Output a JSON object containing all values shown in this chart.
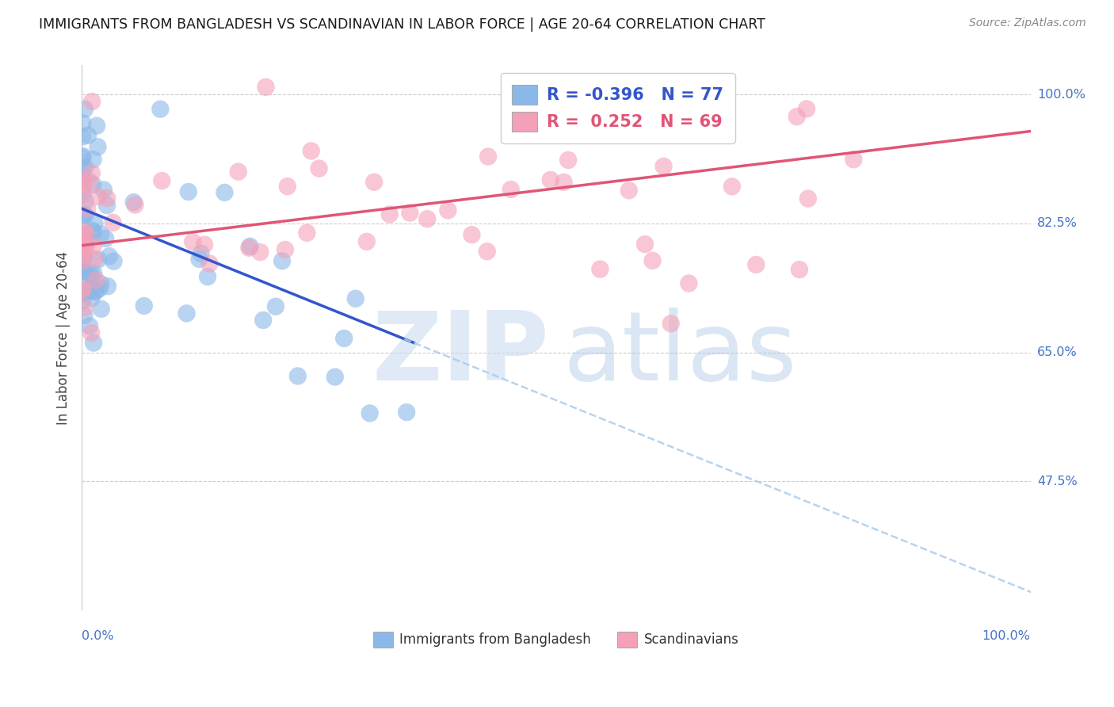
{
  "title": "IMMIGRANTS FROM BANGLADESH VS SCANDINAVIAN IN LABOR FORCE | AGE 20-64 CORRELATION CHART",
  "source": "Source: ZipAtlas.com",
  "ylabel": "In Labor Force | Age 20-64",
  "xlim": [
    0.0,
    1.0
  ],
  "ylim": [
    0.3,
    1.04
  ],
  "r_bangladesh": -0.396,
  "n_bangladesh": 77,
  "r_scandinavian": 0.252,
  "n_scandinavian": 69,
  "color_bangladesh": "#8BB8E8",
  "color_scandinavian": "#F4A0B8",
  "color_bangladesh_line": "#3355CC",
  "color_scandinavian_line": "#E05575",
  "color_bangladesh_dash": "#AACCEE",
  "watermark_zip": "#C8D8F0",
  "watermark_atlas": "#B0C8E8",
  "ytick_positions": [
    0.475,
    0.65,
    0.825,
    1.0
  ],
  "ytick_labels": [
    "47.5%",
    "65.0%",
    "82.5%",
    "100.0%"
  ],
  "grid_color": "#CCCCCC",
  "title_color": "#1A1A1A",
  "source_color": "#888888",
  "axis_label_color": "#4472C4",
  "bang_intercept": 0.845,
  "bang_slope": -0.52,
  "scan_intercept": 0.795,
  "scan_slope": 0.155
}
